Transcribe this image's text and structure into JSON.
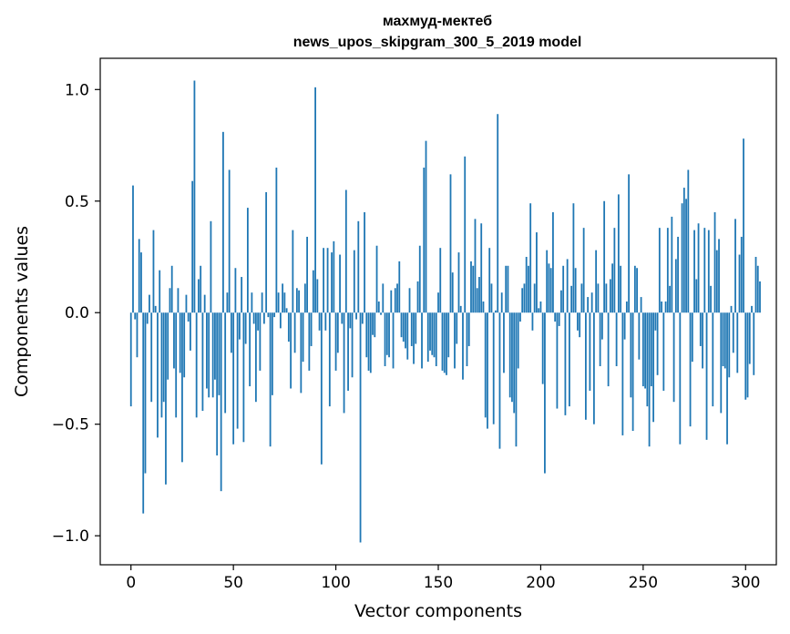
{
  "chart_data": {
    "type": "bar",
    "title": "махмуд-мектеб",
    "subtitle": "news_upos_skipgram_300_5_2019 model",
    "xlabel": "Vector components",
    "ylabel": "Components values",
    "xlim": [
      -15,
      315
    ],
    "ylim": [
      -1.13,
      1.14
    ],
    "xticks": [
      0,
      50,
      100,
      150,
      200,
      250,
      300
    ],
    "xtick_labels": [
      "0",
      "50",
      "100",
      "150",
      "200",
      "250",
      "300"
    ],
    "yticks": [
      -1.0,
      -0.5,
      0.0,
      0.5,
      1.0
    ],
    "ytick_labels": [
      "−1.0",
      "−0.5",
      "0.0",
      "0.5",
      "1.0"
    ],
    "grid": false,
    "bar_color": "#1f77b4",
    "values": [
      -0.42,
      0.57,
      -0.03,
      -0.2,
      0.33,
      0.27,
      -0.9,
      -0.72,
      -0.05,
      0.08,
      -0.4,
      0.37,
      0.03,
      -0.56,
      0.19,
      -0.47,
      -0.4,
      -0.77,
      -0.3,
      0.11,
      0.21,
      -0.25,
      -0.47,
      0.11,
      -0.27,
      -0.67,
      -0.29,
      0.08,
      -0.04,
      -0.17,
      0.59,
      1.04,
      -0.47,
      0.15,
      0.21,
      -0.44,
      0.08,
      -0.34,
      -0.38,
      0.41,
      -0.38,
      -0.3,
      -0.64,
      -0.37,
      -0.8,
      0.81,
      -0.45,
      0.09,
      0.64,
      -0.18,
      -0.59,
      0.2,
      -0.52,
      -0.12,
      0.16,
      -0.58,
      -0.14,
      0.47,
      -0.33,
      0.09,
      -0.05,
      -0.4,
      -0.08,
      -0.26,
      0.09,
      -0.05,
      0.54,
      -0.02,
      -0.6,
      -0.37,
      -0.02,
      0.65,
      0.09,
      -0.07,
      0.13,
      0.09,
      0.02,
      -0.13,
      -0.34,
      0.37,
      -0.18,
      0.11,
      0.1,
      -0.36,
      -0.22,
      0.13,
      0.34,
      -0.26,
      -0.15,
      0.19,
      1.01,
      0.15,
      -0.08,
      -0.68,
      0.29,
      -0.08,
      0.29,
      -0.42,
      0.27,
      0.32,
      -0.26,
      -0.18,
      0.26,
      -0.05,
      -0.45,
      0.55,
      -0.35,
      -0.07,
      -0.29,
      0.28,
      -0.03,
      0.41,
      -1.03,
      -0.05,
      0.45,
      -0.2,
      -0.26,
      -0.27,
      -0.1,
      -0.11,
      0.3,
      0.05,
      -0.01,
      0.13,
      -0.24,
      -0.19,
      -0.2,
      0.1,
      -0.25,
      0.11,
      0.13,
      0.23,
      -0.11,
      -0.13,
      -0.16,
      -0.21,
      0.11,
      -0.15,
      -0.23,
      -0.14,
      0.14,
      0.3,
      -0.25,
      0.65,
      0.77,
      -0.22,
      -0.17,
      -0.19,
      -0.2,
      -0.24,
      0.09,
      0.29,
      -0.26,
      -0.27,
      -0.28,
      -0.2,
      0.62,
      0.18,
      -0.25,
      -0.14,
      0.27,
      0.03,
      -0.3,
      0.7,
      -0.24,
      -0.15,
      0.23,
      0.21,
      0.42,
      0.11,
      0.16,
      0.4,
      0.05,
      -0.47,
      -0.52,
      0.29,
      0.13,
      -0.5,
      0.01,
      0.89,
      -0.61,
      0.09,
      -0.27,
      0.21,
      0.21,
      -0.38,
      -0.4,
      -0.45,
      -0.6,
      -0.25,
      -0.04,
      0.11,
      0.13,
      0.25,
      0.21,
      0.49,
      -0.08,
      0.13,
      0.36,
      0.02,
      0.05,
      -0.32,
      -0.72,
      0.28,
      0.22,
      0.2,
      0.45,
      -0.04,
      -0.43,
      -0.06,
      0.1,
      0.21,
      -0.46,
      0.24,
      -0.42,
      0.12,
      0.49,
      0.2,
      -0.08,
      -0.11,
      0.13,
      0.38,
      -0.48,
      0.07,
      -0.35,
      0.09,
      -0.5,
      0.28,
      0.13,
      -0.24,
      -0.12,
      0.5,
      0.13,
      -0.33,
      0.15,
      0.22,
      0.38,
      -0.24,
      0.53,
      0.21,
      -0.55,
      -0.12,
      0.05,
      0.62,
      -0.38,
      -0.53,
      0.21,
      0.2,
      -0.21,
      0.07,
      -0.33,
      -0.34,
      -0.42,
      -0.6,
      -0.33,
      -0.49,
      -0.08,
      -0.28,
      0.38,
      0.05,
      -0.35,
      0.05,
      0.38,
      0.12,
      0.43,
      -0.4,
      0.24,
      0.34,
      -0.59,
      0.49,
      0.56,
      0.51,
      0.64,
      -0.51,
      -0.22,
      0.37,
      0.15,
      0.4,
      -0.15,
      -0.25,
      0.38,
      -0.57,
      0.37,
      0.12,
      -0.42,
      0.45,
      0.28,
      0.33,
      -0.45,
      -0.24,
      -0.25,
      -0.59,
      -0.29,
      0.03,
      -0.18,
      0.42,
      -0.27,
      0.26,
      0.34,
      0.78,
      -0.39,
      -0.38,
      -0.23,
      0.03,
      -0.28,
      0.25,
      0.21,
      0.14
    ]
  }
}
